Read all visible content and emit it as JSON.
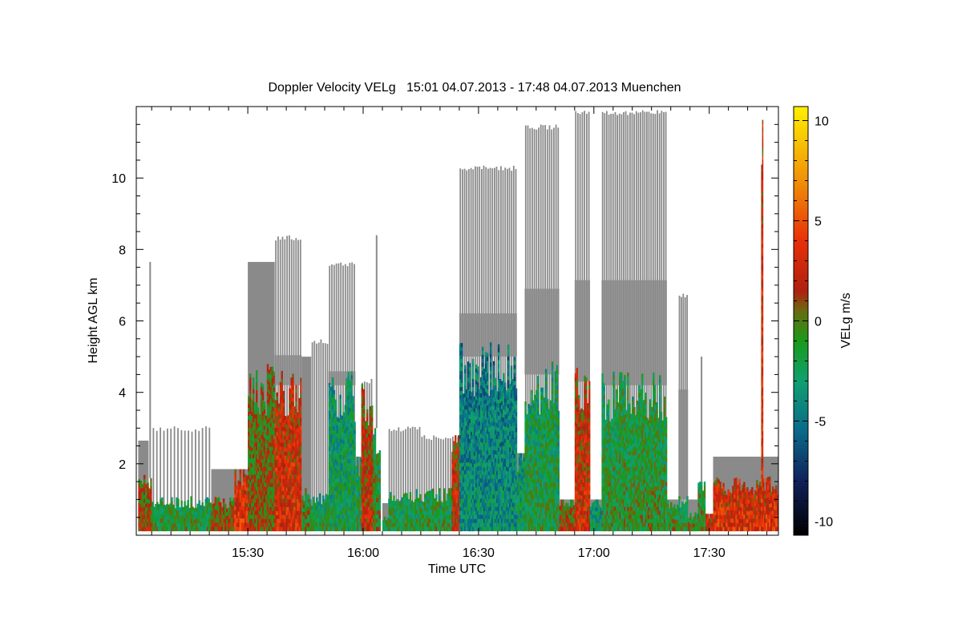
{
  "chart_data": {
    "type": "heatmap",
    "title": "Doppler Velocity VELg   15:01 04.07.2013 - 17:48 04.07.2013 Muenchen",
    "xlabel": "Time UTC",
    "ylabel": "Height AGL km",
    "x_range_minutes_utc": [
      901,
      1068
    ],
    "xlim": [
      "15:01",
      "17:48"
    ],
    "ylim": [
      0,
      12
    ],
    "x_ticks": [
      {
        "minute": 930,
        "label": "15:30"
      },
      {
        "minute": 960,
        "label": "16:00"
      },
      {
        "minute": 990,
        "label": "16:30"
      },
      {
        "minute": 1020,
        "label": "17:00"
      },
      {
        "minute": 1050,
        "label": "17:30"
      }
    ],
    "y_ticks": [
      {
        "value": 2,
        "label": "2"
      },
      {
        "value": 4,
        "label": "4"
      },
      {
        "value": 6,
        "label": "6"
      },
      {
        "value": 8,
        "label": "8"
      },
      {
        "value": 10,
        "label": "10"
      }
    ],
    "colorbar": {
      "label": "VELg m/s",
      "range": [
        -10.7,
        10.7
      ],
      "ticks": [
        {
          "value": 10,
          "label": "10"
        },
        {
          "value": 5,
          "label": "5"
        },
        {
          "value": 0,
          "label": "0"
        },
        {
          "value": -5,
          "label": "-5"
        },
        {
          "value": -10,
          "label": "-10"
        }
      ],
      "stops": [
        {
          "value": -10.7,
          "color": "#000000"
        },
        {
          "value": -8,
          "color": "#10205a"
        },
        {
          "value": -5.5,
          "color": "#0a6a8a"
        },
        {
          "value": -3,
          "color": "#10a070"
        },
        {
          "value": -1,
          "color": "#1a9a1a"
        },
        {
          "value": 0.5,
          "color": "#6a6a10"
        },
        {
          "value": 1.5,
          "color": "#b02010"
        },
        {
          "value": 4,
          "color": "#e83008"
        },
        {
          "value": 7,
          "color": "#f09008"
        },
        {
          "value": 10.7,
          "color": "#fff000"
        }
      ]
    },
    "colors": {
      "no_velocity_signal": "#8a8a8a",
      "background": "#ffffff"
    },
    "segments": [
      {
        "start": 901.5,
        "end": 904.2,
        "top": 2.65,
        "mode": "solid",
        "low_top": 1.6,
        "mid": 1.0,
        "period": 0.45
      },
      {
        "start": 904.2,
        "end": 905.0,
        "top": 7.65,
        "mode": "spike",
        "low_top": 1.6,
        "mid": 1.2,
        "period": 0.5
      },
      {
        "start": 905.0,
        "end": 920.5,
        "top": 3.05,
        "mode": "spikes",
        "low_top": 1.0,
        "mid": -1.5,
        "period": 0.9
      },
      {
        "start": 920.5,
        "end": 926.5,
        "top": 1.85,
        "mode": "solid",
        "low_top": 1.0,
        "mid": 1.0,
        "period": 0.5
      },
      {
        "start": 926.5,
        "end": 930.0,
        "top": 1.85,
        "mode": "solid",
        "low_top": 1.85,
        "mid": 3.0,
        "period": 0.5
      },
      {
        "start": 930.0,
        "end": 937.0,
        "top": 7.65,
        "mode": "solid",
        "low_top": 4.4,
        "mid": 0.5,
        "period": 0.5
      },
      {
        "start": 937.0,
        "end": 944.0,
        "top": 8.4,
        "mode": "spikes",
        "low_top": 4.2,
        "mid": 2.6,
        "period": 0.6
      },
      {
        "start": 944.0,
        "end": 946.5,
        "top": 5.0,
        "mode": "solid",
        "low_top": 1.2,
        "mid": -0.5,
        "period": 0.5
      },
      {
        "start": 946.5,
        "end": 951.0,
        "top": 5.5,
        "mode": "spikes",
        "low_top": 1.1,
        "mid": -2.0,
        "period": 0.6
      },
      {
        "start": 951.0,
        "end": 958.0,
        "top": 7.65,
        "mode": "spikes",
        "low_top": 4.2,
        "mid": -2.8,
        "period": 0.6
      },
      {
        "start": 958.0,
        "end": 959.5,
        "top": 2.2,
        "mode": "solid",
        "low_top": 2.2,
        "mid": -2.0,
        "period": 0.5
      },
      {
        "start": 959.5,
        "end": 962.5,
        "top": 4.4,
        "mode": "spikes",
        "low_top": 3.9,
        "mid": 1.8,
        "period": 0.6
      },
      {
        "start": 962.5,
        "end": 964.5,
        "top": 8.4,
        "mode": "spike",
        "low_top": 3.0,
        "mid": -1.0,
        "period": 0.6
      },
      {
        "start": 965.0,
        "end": 966.5,
        "top": 0.9,
        "mode": "solid",
        "low_top": 0.5,
        "mid": -1.5,
        "period": 0.5
      },
      {
        "start": 966.5,
        "end": 975.0,
        "top": 3.05,
        "mode": "spikes",
        "low_top": 1.2,
        "mid": -1.8,
        "period": 0.6
      },
      {
        "start": 975.0,
        "end": 983.0,
        "top": 2.8,
        "mode": "spikes",
        "low_top": 1.2,
        "mid": -1.5,
        "period": 0.6
      },
      {
        "start": 983.0,
        "end": 985.0,
        "top": 2.8,
        "mode": "spikes",
        "low_top": 2.8,
        "mid": 2.0,
        "period": 0.6
      },
      {
        "start": 985.0,
        "end": 1000.0,
        "top": 10.35,
        "mode": "spikes",
        "low_top": 5.0,
        "mid": -4.2,
        "period": 0.55
      },
      {
        "start": 1000.0,
        "end": 1002.0,
        "top": 2.3,
        "mode": "solid",
        "low_top": 2.3,
        "mid": -3.0,
        "period": 0.5
      },
      {
        "start": 1002.0,
        "end": 1011.0,
        "top": 11.5,
        "mode": "spikes",
        "low_top": 4.5,
        "mid": -2.0,
        "period": 0.55
      },
      {
        "start": 1011.0,
        "end": 1015.0,
        "top": 1.0,
        "mode": "solid",
        "low_top": 1.0,
        "mid": 1.0,
        "period": 0.5
      },
      {
        "start": 1015.0,
        "end": 1019.0,
        "top": 11.9,
        "mode": "spikes",
        "low_top": 4.3,
        "mid": 2.2,
        "period": 0.55
      },
      {
        "start": 1019.0,
        "end": 1022.0,
        "top": 1.0,
        "mode": "solid",
        "low_top": 1.0,
        "mid": -3.0,
        "period": 0.5
      },
      {
        "start": 1022.0,
        "end": 1039.0,
        "top": 11.9,
        "mode": "spikes",
        "low_top": 4.2,
        "mid": -1.4,
        "period": 0.55
      },
      {
        "start": 1039.0,
        "end": 1042.0,
        "top": 1.0,
        "mode": "solid",
        "low_top": 0.9,
        "mid": -1.0,
        "period": 0.5
      },
      {
        "start": 1042.0,
        "end": 1044.5,
        "top": 6.8,
        "mode": "spikes",
        "low_top": 1.0,
        "mid": -2.0,
        "period": 0.5
      },
      {
        "start": 1044.5,
        "end": 1047.0,
        "top": 1.0,
        "mode": "solid",
        "low_top": 0.6,
        "mid": -0.5,
        "period": 0.5
      },
      {
        "start": 1047.0,
        "end": 1049.0,
        "top": 5.0,
        "mode": "spike",
        "low_top": 1.5,
        "mid": -1.0,
        "period": 0.5
      },
      {
        "start": 1049.0,
        "end": 1051.0,
        "top": 0.6,
        "mode": "solid",
        "low_top": 0.6,
        "mid": 2.5,
        "period": 0.5
      },
      {
        "start": 1051.0,
        "end": 1068.0,
        "top": 2.2,
        "mode": "solid",
        "low_top": 1.5,
        "mid": 3.0,
        "period": 0.5
      },
      {
        "start": 1063.5,
        "end": 1064.0,
        "top": 11.8,
        "mode": "spike",
        "low_top": 11.8,
        "mid": 3.0,
        "period": 0.5
      }
    ]
  }
}
